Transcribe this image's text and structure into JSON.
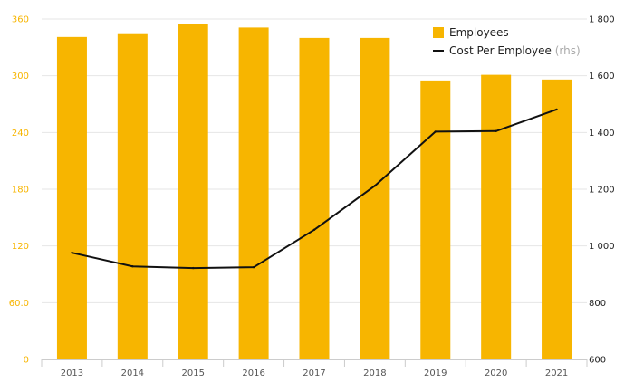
{
  "chart_data": {
    "type": "bar",
    "categories": [
      "2013",
      "2014",
      "2015",
      "2016",
      "2017",
      "2018",
      "2019",
      "2020",
      "2021"
    ],
    "series": [
      {
        "name": "Employees",
        "type": "bar",
        "axis": "left",
        "values": [
          341,
          344,
          355,
          351,
          340,
          340,
          295,
          301,
          296
        ]
      },
      {
        "name": "Cost Per Employee",
        "type": "line",
        "axis": "right",
        "values": [
          976,
          928,
          922,
          925,
          1057,
          1212,
          1403,
          1405,
          1481
        ]
      }
    ],
    "y_left": {
      "range": [
        0,
        360
      ],
      "ticks": [
        0,
        60,
        120,
        180,
        240,
        300,
        360
      ],
      "tick_labels": [
        "0",
        "60.0",
        "120",
        "180",
        "240",
        "300",
        "360"
      ]
    },
    "y_right": {
      "range": [
        600,
        1800
      ],
      "ticks": [
        600,
        800,
        1000,
        1200,
        1400,
        1600,
        1800
      ],
      "tick_labels": [
        "600",
        "800",
        "1 000",
        "1 200",
        "1 400",
        "1 600",
        "1 800"
      ]
    },
    "legend": {
      "position": "top-right",
      "items": [
        {
          "label": "Employees",
          "marker": "bar",
          "suffix": ""
        },
        {
          "label": "Cost Per Employee",
          "marker": "line",
          "suffix": "(rhs)"
        }
      ]
    },
    "grid": true,
    "colors": {
      "bar": "#f7b500",
      "line": "#111111",
      "grid": "#e6e6e6",
      "left_axis": "#f7b500"
    }
  }
}
